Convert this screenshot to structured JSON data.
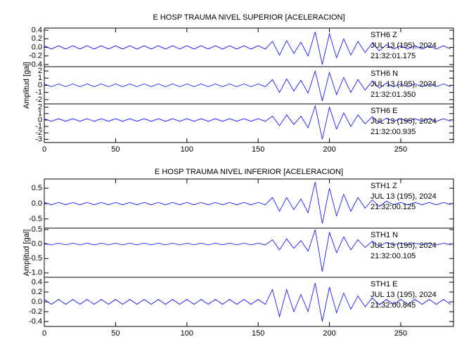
{
  "chart_data": [
    {
      "type": "line",
      "title": "E HOSP TRAUMA NIVEL SUPERIOR [ACELERACION]",
      "y_label": "Amplitud  [gal]",
      "xlim": [
        0,
        287
      ],
      "xticks": [
        0,
        50,
        100,
        150,
        200,
        250
      ],
      "x": [
        0,
        5,
        10,
        15,
        20,
        25,
        30,
        35,
        40,
        45,
        50,
        55,
        60,
        65,
        70,
        75,
        80,
        85,
        90,
        95,
        100,
        105,
        110,
        115,
        120,
        125,
        130,
        135,
        140,
        145,
        150,
        155,
        160,
        165,
        170,
        175,
        180,
        185,
        190,
        195,
        200,
        205,
        210,
        215,
        220,
        225,
        230,
        235,
        240,
        245,
        250,
        255,
        260,
        265,
        270,
        275,
        280,
        285
      ],
      "panels": [
        {
          "labels": [
            "STH6   Z",
            "JUL 13 (195), 2024",
            "21:32:01.175"
          ],
          "color": "#0000ff",
          "ylim": [
            -0.45,
            0.45
          ],
          "yticks": [
            -0.4,
            -0.2,
            {
              "value": 0,
              "label": "0.0"
            },
            0.2,
            0.4
          ],
          "values": [
            0.04,
            -0.04,
            0.04,
            -0.04,
            0.04,
            -0.04,
            0.04,
            -0.04,
            0.04,
            -0.04,
            0.04,
            -0.04,
            0.04,
            -0.04,
            0.04,
            -0.04,
            0.04,
            -0.04,
            0.04,
            -0.04,
            0.04,
            -0.04,
            0.04,
            -0.04,
            0.04,
            -0.04,
            0.04,
            -0.04,
            0.04,
            -0.04,
            0.04,
            -0.04,
            0.14,
            -0.18,
            0.16,
            -0.14,
            0.12,
            -0.2,
            0.36,
            -0.4,
            0.32,
            -0.24,
            0.2,
            -0.18,
            0.14,
            -0.12,
            0.1,
            -0.08,
            0.06,
            -0.04,
            0.04,
            -0.04,
            0.04,
            -0.04,
            0.04,
            -0.04,
            0.04,
            -0.04
          ]
        },
        {
          "labels": [
            "STH6   N",
            "JUL 13 (195), 2024",
            "21:32:01.350"
          ],
          "color": "#0000ff",
          "ylim": [
            -2.6,
            2.6
          ],
          "yticks": [
            -2,
            -1,
            0,
            1,
            2
          ],
          "values": [
            0.2,
            -0.2,
            0.2,
            -0.2,
            0.2,
            -0.2,
            0.2,
            -0.2,
            0.2,
            -0.2,
            0.2,
            -0.2,
            0.2,
            -0.2,
            0.2,
            -0.2,
            0.2,
            -0.2,
            0.2,
            -0.2,
            0.2,
            -0.2,
            0.2,
            -0.2,
            0.2,
            -0.2,
            0.2,
            -0.2,
            0.2,
            -0.2,
            0.2,
            -0.2,
            0.8,
            -1,
            0.9,
            -0.8,
            0.7,
            -1.1,
            2,
            -2.2,
            1.8,
            -1.3,
            1.1,
            -1,
            0.8,
            -0.7,
            0.6,
            -0.4,
            0.3,
            -0.2,
            0.2,
            -0.2,
            0.2,
            -0.2,
            0.2,
            -0.2,
            0.2,
            -0.2
          ]
        },
        {
          "labels": [
            "STH6   E",
            "JUL 13 (195), 2024",
            "21:32:00.935"
          ],
          "color": "#0000ff",
          "ylim": [
            -3.5,
            2.5
          ],
          "yticks": [
            -3,
            -2,
            -1,
            0,
            1,
            2
          ],
          "values": [
            0.2,
            -0.2,
            0.2,
            -0.2,
            0.2,
            -0.2,
            0.2,
            -0.2,
            0.2,
            -0.2,
            0.2,
            -0.2,
            0.2,
            -0.2,
            0.2,
            -0.2,
            0.2,
            -0.2,
            0.2,
            -0.2,
            0.2,
            -0.2,
            0.2,
            -0.2,
            0.2,
            -0.2,
            0.2,
            -0.2,
            0.2,
            -0.2,
            0.2,
            -0.2,
            0.6,
            -0.9,
            0.8,
            -0.7,
            0.6,
            -1.2,
            2.2,
            -3,
            2,
            -1.4,
            1.1,
            -1,
            0.8,
            -0.6,
            0.5,
            -0.4,
            0.3,
            -0.2,
            0.2,
            -0.2,
            0.2,
            -0.2,
            0.2,
            -0.2,
            0.2,
            -0.2
          ]
        }
      ]
    },
    {
      "type": "line",
      "title": "E HOSP TRAUMA NIVEL INFERIOR [ACELERACION]",
      "y_label": "Amplitud  [gal]",
      "xlim": [
        0,
        287
      ],
      "xticks": [
        0,
        50,
        100,
        150,
        200,
        250
      ],
      "x": [
        0,
        5,
        10,
        15,
        20,
        25,
        30,
        35,
        40,
        45,
        50,
        55,
        60,
        65,
        70,
        75,
        80,
        85,
        90,
        95,
        100,
        105,
        110,
        115,
        120,
        125,
        130,
        135,
        140,
        145,
        150,
        155,
        160,
        165,
        170,
        175,
        180,
        185,
        190,
        195,
        200,
        205,
        210,
        215,
        220,
        225,
        230,
        235,
        240,
        245,
        250,
        255,
        260,
        265,
        270,
        275,
        280,
        285
      ],
      "panels": [
        {
          "labels": [
            "STH1   Z",
            "JUL 13 (195), 2024",
            "21:32:00.125"
          ],
          "color": "#0000ff",
          "ylim": [
            -0.8,
            0.8
          ],
          "yticks": [
            -0.5,
            {
              "value": 0,
              "label": "0.0"
            },
            0.5
          ],
          "values": [
            0.04,
            -0.04,
            0.04,
            -0.04,
            0.04,
            -0.04,
            0.04,
            -0.04,
            0.04,
            -0.04,
            0.04,
            -0.04,
            0.04,
            -0.04,
            0.04,
            -0.04,
            0.04,
            -0.04,
            0.04,
            -0.04,
            0.04,
            -0.04,
            0.04,
            -0.04,
            0.04,
            -0.04,
            0.04,
            -0.04,
            0.04,
            -0.04,
            0.04,
            -0.04,
            0.2,
            -0.25,
            0.2,
            -0.2,
            0.15,
            -0.3,
            0.7,
            -0.65,
            0.5,
            -0.4,
            0.3,
            -0.25,
            0.2,
            -0.15,
            0.12,
            -0.1,
            0.08,
            -0.04,
            0.04,
            -0.04,
            0.04,
            -0.04,
            0.04,
            -0.04,
            0.04,
            -0.04
          ]
        },
        {
          "labels": [
            "STH1   N",
            "JUL 13 (195), 2024",
            "21:32:00.105"
          ],
          "color": "#0000ff",
          "ylim": [
            -1.15,
            0.55
          ],
          "yticks": [
            {
              "value": -1,
              "label": "-1.0"
            },
            -0.5,
            {
              "value": 0,
              "label": "0.0"
            },
            0.5
          ],
          "values": [
            0.03,
            -0.03,
            0.03,
            -0.03,
            0.03,
            -0.03,
            0.03,
            -0.03,
            0.03,
            -0.03,
            0.03,
            -0.03,
            0.03,
            -0.03,
            0.03,
            -0.03,
            0.03,
            -0.03,
            0.03,
            -0.03,
            0.03,
            -0.03,
            0.03,
            -0.03,
            0.03,
            -0.03,
            0.03,
            -0.03,
            0.03,
            -0.03,
            0.03,
            -0.03,
            0.15,
            -0.2,
            0.18,
            -0.15,
            0.12,
            -0.25,
            0.5,
            -0.95,
            0.4,
            -0.3,
            0.25,
            -0.2,
            0.15,
            -0.12,
            0.1,
            -0.08,
            0.06,
            -0.03,
            0.03,
            -0.03,
            0.03,
            -0.03,
            0.03,
            -0.03,
            0.03,
            -0.03
          ]
        },
        {
          "labels": [
            "STH1   E",
            "JUL 13 (195), 2024",
            "21:32:00.845"
          ],
          "color": "#0000ff",
          "ylim": [
            -0.5,
            0.5
          ],
          "yticks": [
            -0.4,
            -0.2,
            {
              "value": 0,
              "label": "0.0"
            },
            0.2,
            0.4
          ],
          "values": [
            0.05,
            -0.05,
            0.05,
            -0.05,
            0.05,
            -0.05,
            0.05,
            -0.05,
            0.05,
            -0.05,
            0.05,
            -0.05,
            0.05,
            -0.05,
            0.05,
            -0.05,
            0.05,
            -0.05,
            0.05,
            -0.05,
            0.05,
            -0.05,
            0.05,
            -0.05,
            0.05,
            -0.05,
            0.05,
            -0.05,
            0.05,
            -0.05,
            0.05,
            -0.05,
            0.25,
            -0.3,
            0.25,
            -0.2,
            0.15,
            -0.2,
            0.38,
            -0.4,
            0.3,
            -0.22,
            0.18,
            -0.15,
            0.12,
            -0.1,
            0.08,
            -0.06,
            0.05,
            -0.05,
            0.05,
            -0.05,
            0.05,
            -0.05,
            0.05,
            -0.05,
            0.05,
            -0.05
          ]
        }
      ]
    }
  ]
}
